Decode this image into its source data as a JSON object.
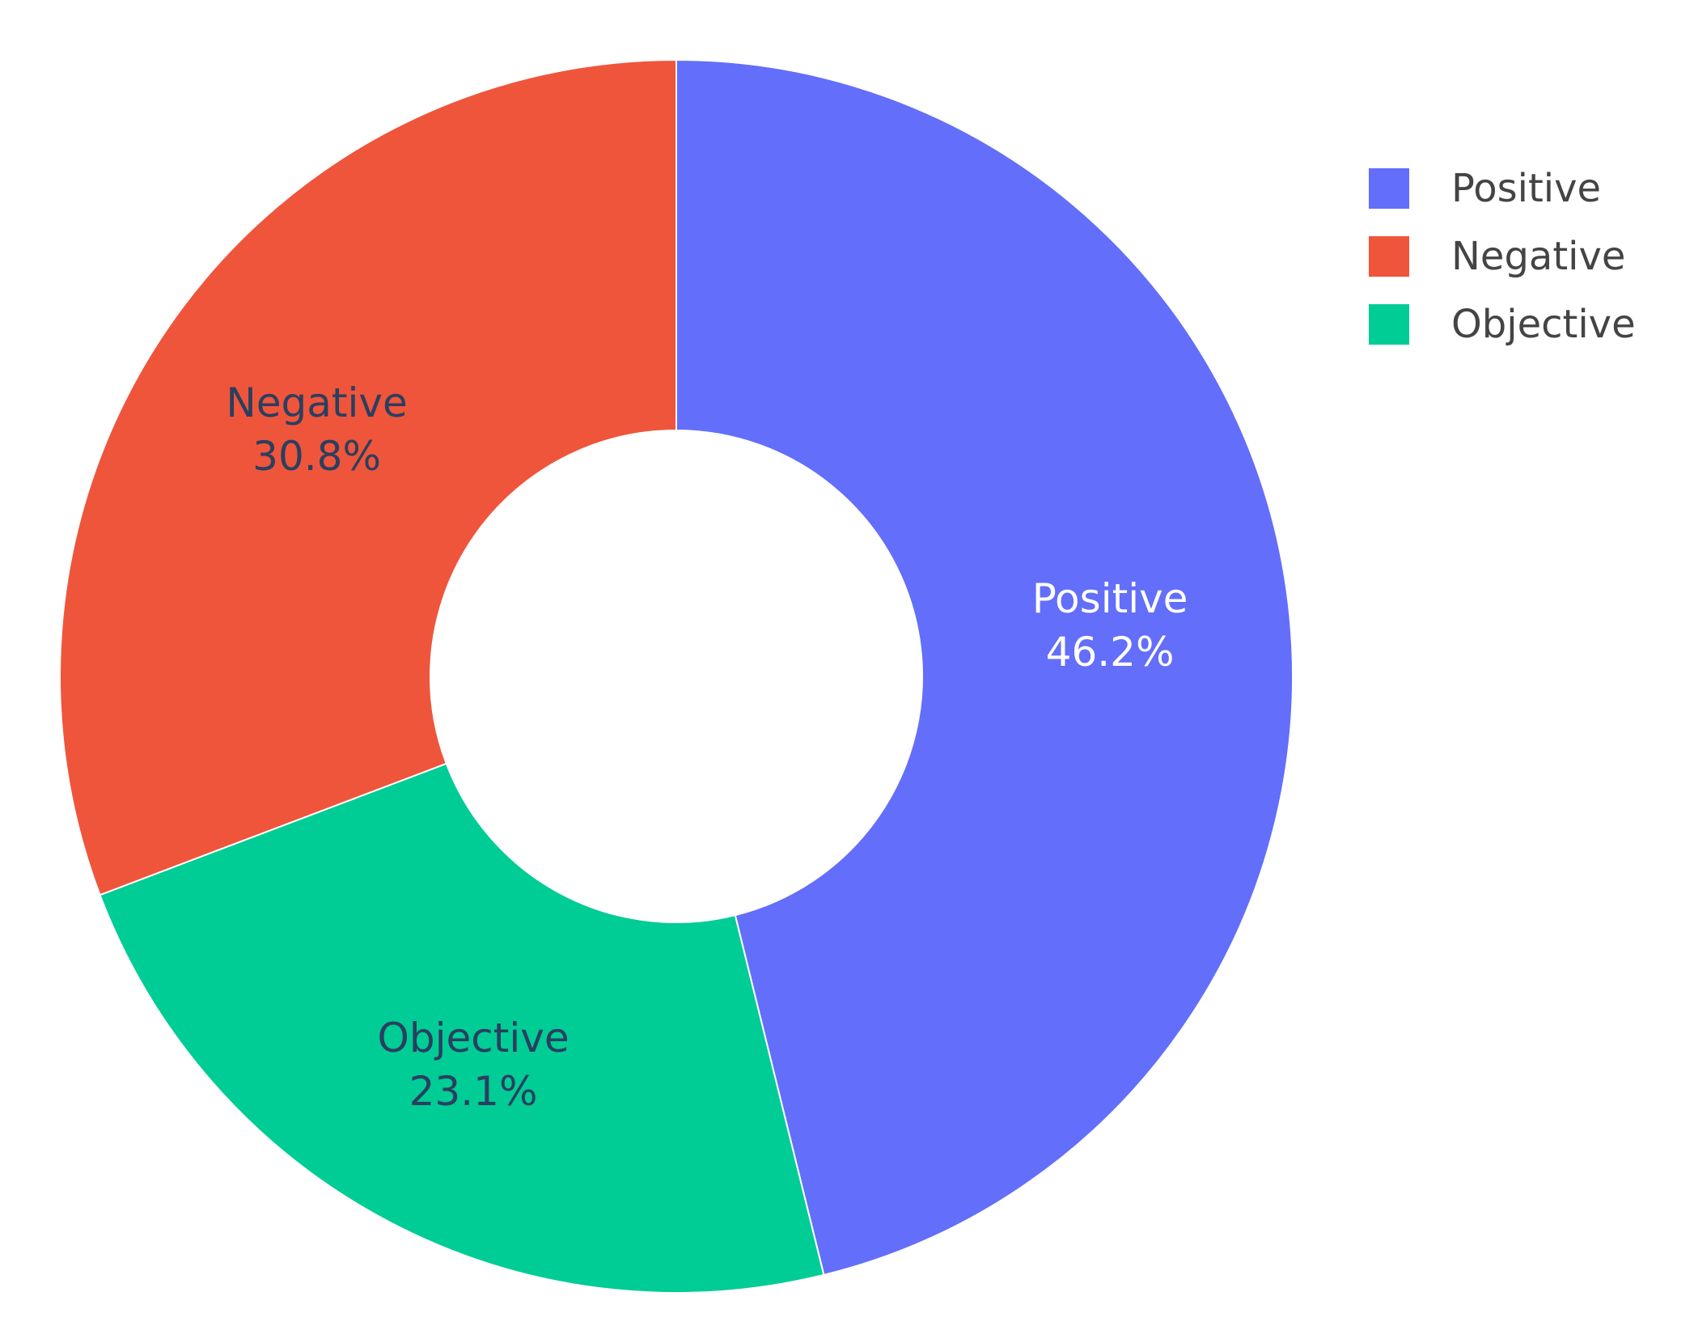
{
  "chart_data": {
    "type": "pie",
    "hole": true,
    "sort": "clockwise from top",
    "slices": [
      {
        "label": "Positive",
        "value": 46.2,
        "text": "46.2%",
        "color": "#636efa",
        "text_color": "#ffffff"
      },
      {
        "label": "Objective",
        "value": 23.1,
        "text": "23.1%",
        "color": "#00cc96",
        "text_color": "#2a3f5f"
      },
      {
        "label": "Negative",
        "value": 30.8,
        "text": "30.8%",
        "color": "#ef553b",
        "text_color": "#2a3f5f"
      }
    ],
    "legend": {
      "placement": "top-right",
      "entries": [
        {
          "label": "Positive",
          "color": "#636efa"
        },
        {
          "label": "Negative",
          "color": "#ef553b"
        },
        {
          "label": "Objective",
          "color": "#00cc96"
        }
      ]
    }
  }
}
